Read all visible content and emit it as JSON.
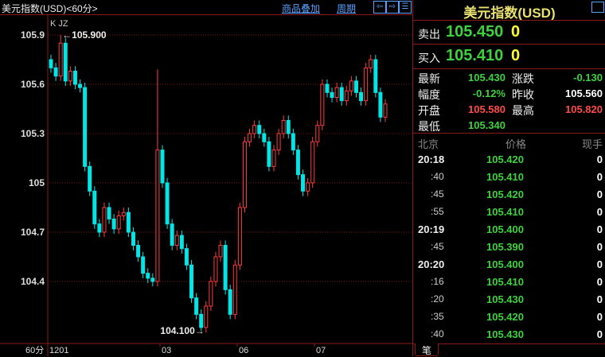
{
  "header": {
    "title": "美元指数(USD)<60分>",
    "overlay_link": "商品叠加",
    "period_link": "周期",
    "nav_icons": [
      "arrow-left-icon",
      "arrow-right-icon",
      "layout-icon"
    ]
  },
  "chart_data": {
    "type": "candlestick",
    "indicator_labels": [
      "K",
      "JZ"
    ],
    "period_label": "60分",
    "yticks": [
      105.9,
      105.6,
      105.3,
      105.0,
      104.7,
      104.4
    ],
    "ylim": [
      104.06,
      105.99
    ],
    "xtick_labels": [
      "1201",
      "03",
      "06",
      "07"
    ],
    "max_annotation": "105.900",
    "min_annotation": "104.100",
    "closes": [
      105.7,
      105.65,
      105.85,
      105.62,
      105.68,
      105.6,
      105.58,
      105.1,
      104.95,
      104.75,
      104.7,
      104.85,
      104.78,
      104.72,
      104.8,
      104.82,
      104.7,
      104.62,
      104.55,
      104.45,
      104.42,
      104.4,
      105.2,
      105.0,
      104.75,
      104.62,
      104.68,
      104.6,
      104.5,
      104.3,
      104.2,
      104.12,
      104.25,
      104.4,
      104.55,
      104.62,
      104.35,
      104.2,
      104.5,
      104.85,
      105.25,
      105.3,
      105.35,
      105.3,
      105.25,
      105.1,
      105.2,
      105.3,
      105.38,
      105.3,
      105.2,
      105.05,
      104.95,
      105.0,
      105.25,
      105.35,
      105.6,
      105.55,
      105.52,
      105.58,
      105.5,
      105.56,
      105.62,
      105.55,
      105.5,
      105.7,
      105.75,
      105.55,
      105.4,
      105.48
    ],
    "up_color": "#ff3c3c",
    "down_color": "#00e5e5",
    "grid_color": "#7a1010"
  },
  "panel": {
    "title": "美元指数(USD)",
    "sell_label": "卖出",
    "sell_price": "105.450",
    "sell_qty": "0",
    "buy_label": "买入",
    "buy_price": "105.410",
    "buy_qty": "0",
    "stats": [
      {
        "label": "最新",
        "value": "105.430",
        "color": "g"
      },
      {
        "label": "涨跌",
        "value": "-0.130",
        "color": "g"
      },
      {
        "label": "幅度",
        "value": "-0.12%",
        "color": "g"
      },
      {
        "label": "昨收",
        "value": "105.560",
        "color": "w"
      },
      {
        "label": "开盘",
        "value": "105.580",
        "color": "r"
      },
      {
        "label": "最高",
        "value": "105.820",
        "color": "r"
      },
      {
        "label": "最低",
        "value": "105.340",
        "color": "g"
      }
    ],
    "list_headers": [
      "北京",
      "价格",
      "现手"
    ],
    "ticks": [
      {
        "time": "20:18",
        "price": "105.420",
        "qty": "0"
      },
      {
        "time": ":40",
        "price": "105.410",
        "qty": "0"
      },
      {
        "time": ":45",
        "price": "105.420",
        "qty": "0"
      },
      {
        "time": ":55",
        "price": "105.410",
        "qty": "0"
      },
      {
        "time": "20:19",
        "price": "105.400",
        "qty": "0"
      },
      {
        "time": ":45",
        "price": "105.390",
        "qty": "0"
      },
      {
        "time": "20:20",
        "price": "105.400",
        "qty": "0"
      },
      {
        "time": ":16",
        "price": "105.410",
        "qty": "0"
      },
      {
        "time": ":20",
        "price": "105.430",
        "qty": "0"
      },
      {
        "time": ":35",
        "price": "105.420",
        "qty": "0"
      },
      {
        "time": ":40",
        "price": "105.430",
        "qty": "0"
      }
    ],
    "bottom_tab": "笔"
  }
}
